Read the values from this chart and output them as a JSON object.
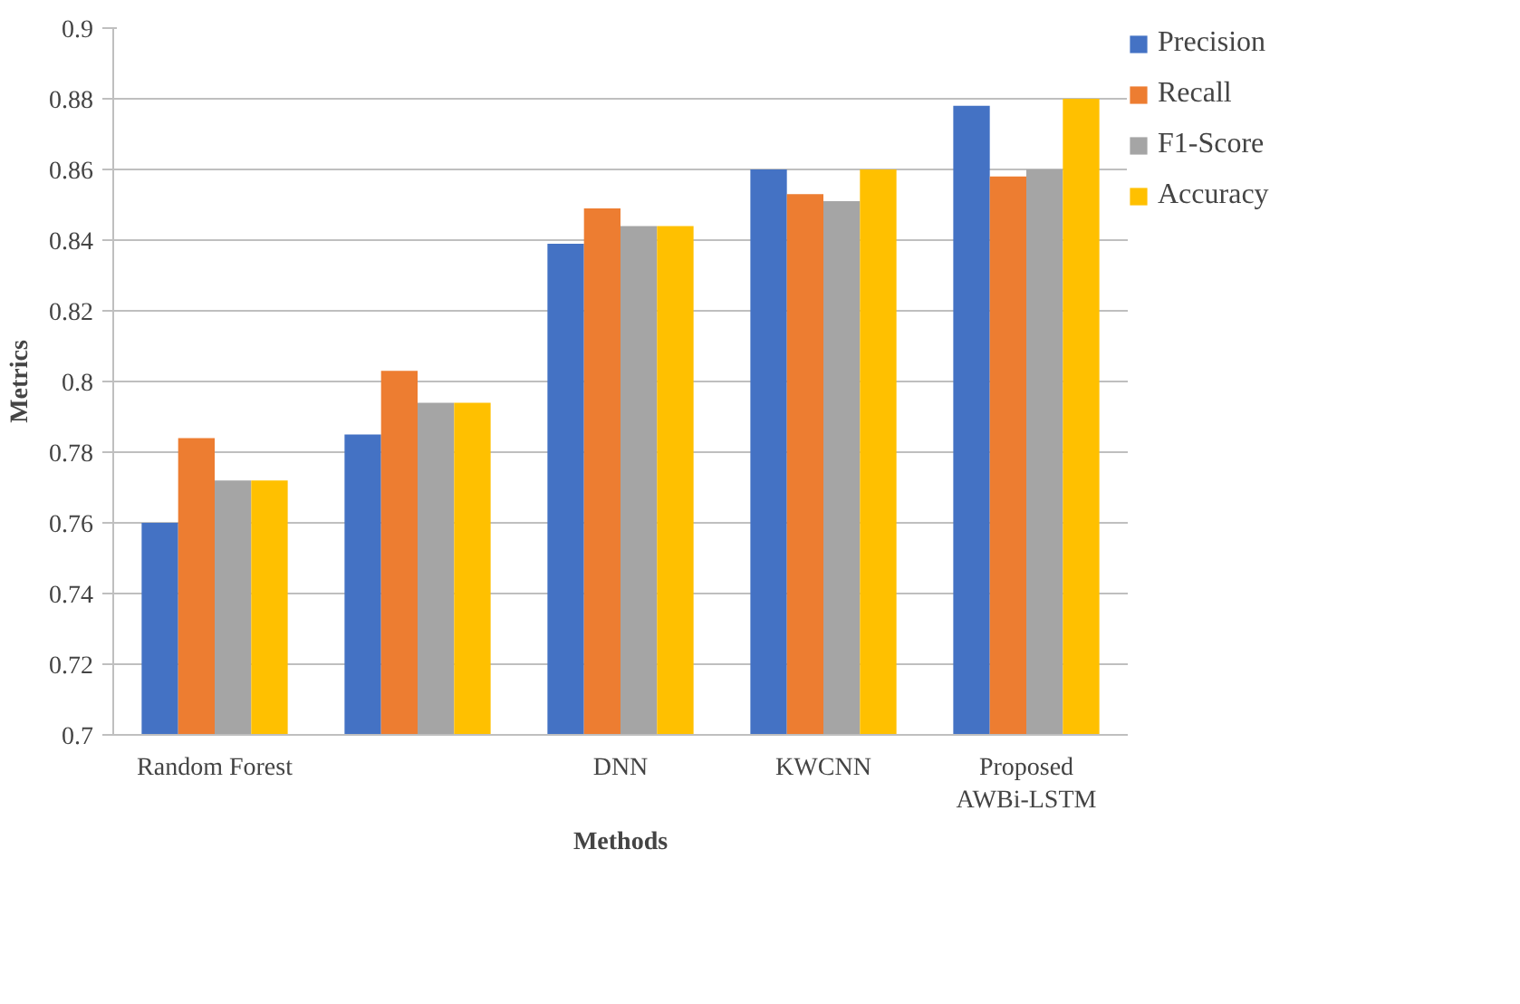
{
  "chart_data": {
    "type": "bar",
    "xlabel": "Methods",
    "ylabel": "Metrics",
    "categories": [
      "Random Forest",
      null,
      "DNN",
      "KWCNN",
      "Proposed\nAWBi-LSTM"
    ],
    "series": [
      {
        "name": "Precision",
        "color": "#4472c4",
        "values": [
          0.76,
          0.785,
          0.839,
          0.86,
          0.878
        ]
      },
      {
        "name": "Recall",
        "color": "#ed7d31",
        "values": [
          0.784,
          0.803,
          0.849,
          0.853,
          0.858
        ]
      },
      {
        "name": "F1-Score",
        "color": "#a5a5a5",
        "values": [
          0.772,
          0.794,
          0.844,
          0.851,
          0.86
        ]
      },
      {
        "name": "Accuracy",
        "color": "#ffc000",
        "values": [
          0.772,
          0.794,
          0.844,
          0.86,
          0.88
        ]
      }
    ],
    "ylim": [
      0.7,
      0.9
    ],
    "yticks": [
      0.7,
      0.72,
      0.74,
      0.76,
      0.78,
      0.8,
      0.82,
      0.84,
      0.86,
      0.88,
      0.9
    ],
    "grid": "y",
    "legend": "right"
  }
}
